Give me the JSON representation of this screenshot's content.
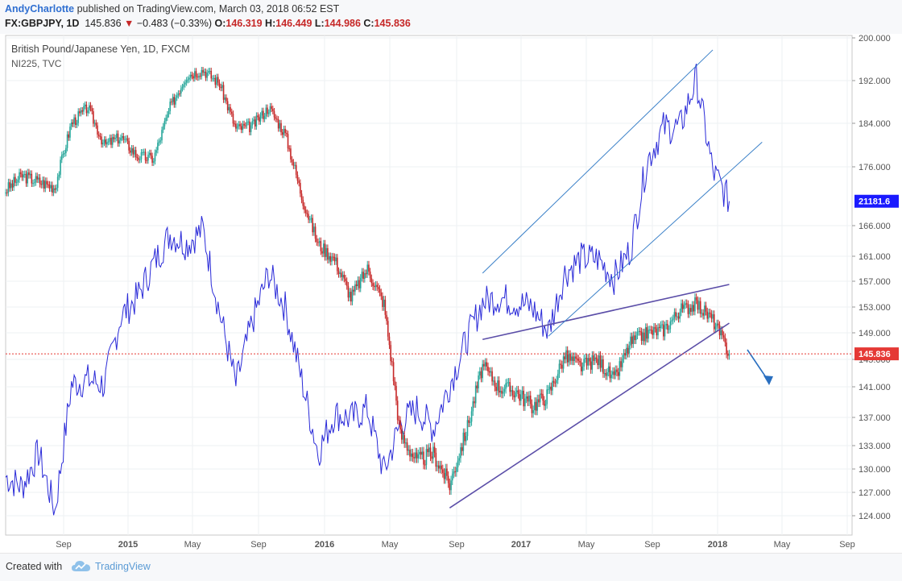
{
  "header": {
    "author": "AndyCharlotte",
    "published_text": "published on TradingView.com, March 03, 2018 06:52 EST",
    "symbol": "FX:GBPJPY, 1D",
    "last": "145.836",
    "change_arrow": "▼",
    "change": "−0.483 (−0.33%)",
    "o_label": "O:",
    "o_value": "146.319",
    "h_label": "H:",
    "h_value": "146.449",
    "l_label": "L:",
    "l_value": "144.986",
    "c_label": "C:",
    "c_value": "145.836"
  },
  "chart_overlay": {
    "title": "British Pound/Japanese Yen, 1D, FXCM",
    "subtitle": "NI225, TVC"
  },
  "footer": {
    "created_with": "Created with",
    "brand": "TradingView",
    "logo_icon": "tradingview-cloud-icon"
  },
  "chart_data": {
    "type": "line",
    "title": "British Pound/Japanese Yen, 1D, FXCM",
    "overlay_symbol": "NI225, TVC",
    "x_ticks": [
      "Sep",
      "2015",
      "May",
      "Sep",
      "2016",
      "May",
      "Sep",
      "2017",
      "May",
      "Sep",
      "2018",
      "May",
      "Sep"
    ],
    "y_ticks": [
      "200.000",
      "192.000",
      "184.000",
      "176.000",
      "166.000",
      "161.000",
      "157.000",
      "153.000",
      "149.000",
      "145.000",
      "141.000",
      "137.000",
      "133.000",
      "130.000",
      "127.000",
      "124.000"
    ],
    "price_label": "145.836",
    "nikkei_label": "21181.6",
    "colors": {
      "up": "#26a69a",
      "down": "#c62828",
      "nikkei": "#2a2ad8",
      "trend_gbp": "#5b4ea8",
      "trend_nikkei": "#3a80c8",
      "price_line": "#e53935",
      "forecast": "#2a6fc0"
    },
    "series": [
      {
        "name": "GBPJPY",
        "x": [
          "2014-07",
          "2014-08",
          "2014-09",
          "2014-10",
          "2014-11",
          "2014-12",
          "2015-01",
          "2015-02",
          "2015-03",
          "2015-04",
          "2015-05",
          "2015-06",
          "2015-07",
          "2015-08",
          "2015-09",
          "2015-10",
          "2015-11",
          "2015-12",
          "2016-01",
          "2016-02",
          "2016-03",
          "2016-04",
          "2016-05",
          "2016-06",
          "2016-07",
          "2016-08",
          "2016-09",
          "2016-10",
          "2016-11",
          "2016-12",
          "2017-01",
          "2017-02",
          "2017-03",
          "2017-04",
          "2017-05",
          "2017-06",
          "2017-07",
          "2017-08",
          "2017-09",
          "2017-10",
          "2017-11",
          "2017-12",
          "2018-01",
          "2018-02",
          "2018-03"
        ],
        "values": [
          172.0,
          174.5,
          173.5,
          172.5,
          184.0,
          187.0,
          180.0,
          181.5,
          178.0,
          177.5,
          187.0,
          193.0,
          194.0,
          191.5,
          183.0,
          183.5,
          187.0,
          182.0,
          171.0,
          163.0,
          160.5,
          154.5,
          159.0,
          153.5,
          134.5,
          131.0,
          132.0,
          128.0,
          135.0,
          144.0,
          141.0,
          140.5,
          138.5,
          140.0,
          145.5,
          144.0,
          145.0,
          142.0,
          147.5,
          149.0,
          149.5,
          152.5,
          153.5,
          151.0,
          145.836
        ]
      },
      {
        "name": "NI225",
        "x": [
          "2014-07",
          "2014-08",
          "2014-09",
          "2014-10",
          "2014-11",
          "2014-12",
          "2015-01",
          "2015-02",
          "2015-03",
          "2015-04",
          "2015-05",
          "2015-06",
          "2015-07",
          "2015-08",
          "2015-09",
          "2015-10",
          "2015-11",
          "2015-12",
          "2016-01",
          "2016-02",
          "2016-03",
          "2016-04",
          "2016-05",
          "2016-06",
          "2016-07",
          "2016-08",
          "2016-09",
          "2016-10",
          "2016-11",
          "2016-12",
          "2017-01",
          "2017-02",
          "2017-03",
          "2017-04",
          "2017-05",
          "2017-06",
          "2017-07",
          "2017-08",
          "2017-09",
          "2017-10",
          "2017-11",
          "2017-12",
          "2018-01",
          "2018-02",
          "2018-03"
        ],
        "values": [
          15500,
          15300,
          16000,
          14800,
          17400,
          17500,
          17400,
          18800,
          19200,
          19900,
          20500,
          20300,
          20600,
          18900,
          17400,
          18700,
          19700,
          19000,
          17500,
          16000,
          16800,
          16700,
          16900,
          15600,
          16600,
          16900,
          16500,
          17400,
          18300,
          19100,
          19200,
          19100,
          19000,
          18500,
          19700,
          20000,
          20000,
          19600,
          20200,
          22000,
          22700,
          22700,
          23700,
          21800,
          21181.6
        ]
      }
    ],
    "trendlines": [
      {
        "name": "GBPJPY lower support",
        "from": [
          "2016-10",
          125.0
        ],
        "to": [
          "2018-03",
          150.5
        ]
      },
      {
        "name": "GBPJPY upper resistance",
        "from": [
          "2016-12",
          148.0
        ],
        "to": [
          "2018-03",
          156.5
        ]
      },
      {
        "name": "NI225 upper channel",
        "from": [
          "2016-12",
          19700
        ],
        "to": [
          "2018-02",
          24300
        ]
      },
      {
        "name": "NI225 lower channel",
        "from": [
          "2017-04",
          18400
        ],
        "to": [
          "2018-05",
          22400
        ]
      }
    ]
  }
}
